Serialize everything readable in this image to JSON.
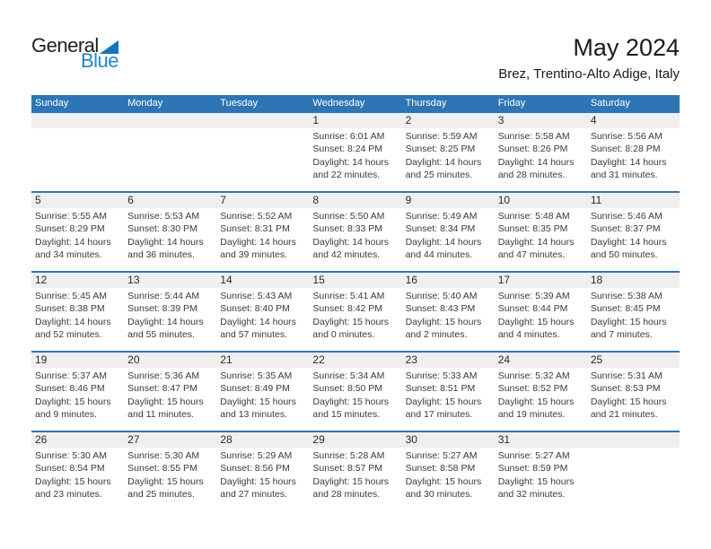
{
  "logo": {
    "word_top": "General",
    "word_bottom": "Blue"
  },
  "title": "May 2024",
  "subtitle": "Brez, Trentino-Alto Adige, Italy",
  "colors": {
    "header_blue": "#2E75B5",
    "week_line_blue": "#2E75B5",
    "day_strip_gray": "#EFEFEF",
    "logo_blue": "#1E88CC",
    "logo_triangle_blue": "#1874B8",
    "weekday_text": "#FFFFFF",
    "body_text": "#3A3A3A",
    "day_number_text": "#2B2B2B"
  },
  "weekdays": [
    "Sunday",
    "Monday",
    "Tuesday",
    "Wednesday",
    "Thursday",
    "Friday",
    "Saturday"
  ],
  "weeks": [
    [
      null,
      null,
      null,
      {
        "day": "1",
        "sunrise": "Sunrise: 6:01 AM",
        "sunset": "Sunset: 8:24 PM",
        "daylight_line1": "Daylight: 14 hours",
        "daylight_line2": "and 22 minutes."
      },
      {
        "day": "2",
        "sunrise": "Sunrise: 5:59 AM",
        "sunset": "Sunset: 8:25 PM",
        "daylight_line1": "Daylight: 14 hours",
        "daylight_line2": "and 25 minutes."
      },
      {
        "day": "3",
        "sunrise": "Sunrise: 5:58 AM",
        "sunset": "Sunset: 8:26 PM",
        "daylight_line1": "Daylight: 14 hours",
        "daylight_line2": "and 28 minutes."
      },
      {
        "day": "4",
        "sunrise": "Sunrise: 5:56 AM",
        "sunset": "Sunset: 8:28 PM",
        "daylight_line1": "Daylight: 14 hours",
        "daylight_line2": "and 31 minutes."
      }
    ],
    [
      {
        "day": "5",
        "sunrise": "Sunrise: 5:55 AM",
        "sunset": "Sunset: 8:29 PM",
        "daylight_line1": "Daylight: 14 hours",
        "daylight_line2": "and 34 minutes."
      },
      {
        "day": "6",
        "sunrise": "Sunrise: 5:53 AM",
        "sunset": "Sunset: 8:30 PM",
        "daylight_line1": "Daylight: 14 hours",
        "daylight_line2": "and 36 minutes."
      },
      {
        "day": "7",
        "sunrise": "Sunrise: 5:52 AM",
        "sunset": "Sunset: 8:31 PM",
        "daylight_line1": "Daylight: 14 hours",
        "daylight_line2": "and 39 minutes."
      },
      {
        "day": "8",
        "sunrise": "Sunrise: 5:50 AM",
        "sunset": "Sunset: 8:33 PM",
        "daylight_line1": "Daylight: 14 hours",
        "daylight_line2": "and 42 minutes."
      },
      {
        "day": "9",
        "sunrise": "Sunrise: 5:49 AM",
        "sunset": "Sunset: 8:34 PM",
        "daylight_line1": "Daylight: 14 hours",
        "daylight_line2": "and 44 minutes."
      },
      {
        "day": "10",
        "sunrise": "Sunrise: 5:48 AM",
        "sunset": "Sunset: 8:35 PM",
        "daylight_line1": "Daylight: 14 hours",
        "daylight_line2": "and 47 minutes."
      },
      {
        "day": "11",
        "sunrise": "Sunrise: 5:46 AM",
        "sunset": "Sunset: 8:37 PM",
        "daylight_line1": "Daylight: 14 hours",
        "daylight_line2": "and 50 minutes."
      }
    ],
    [
      {
        "day": "12",
        "sunrise": "Sunrise: 5:45 AM",
        "sunset": "Sunset: 8:38 PM",
        "daylight_line1": "Daylight: 14 hours",
        "daylight_line2": "and 52 minutes."
      },
      {
        "day": "13",
        "sunrise": "Sunrise: 5:44 AM",
        "sunset": "Sunset: 8:39 PM",
        "daylight_line1": "Daylight: 14 hours",
        "daylight_line2": "and 55 minutes."
      },
      {
        "day": "14",
        "sunrise": "Sunrise: 5:43 AM",
        "sunset": "Sunset: 8:40 PM",
        "daylight_line1": "Daylight: 14 hours",
        "daylight_line2": "and 57 minutes."
      },
      {
        "day": "15",
        "sunrise": "Sunrise: 5:41 AM",
        "sunset": "Sunset: 8:42 PM",
        "daylight_line1": "Daylight: 15 hours",
        "daylight_line2": "and 0 minutes."
      },
      {
        "day": "16",
        "sunrise": "Sunrise: 5:40 AM",
        "sunset": "Sunset: 8:43 PM",
        "daylight_line1": "Daylight: 15 hours",
        "daylight_line2": "and 2 minutes."
      },
      {
        "day": "17",
        "sunrise": "Sunrise: 5:39 AM",
        "sunset": "Sunset: 8:44 PM",
        "daylight_line1": "Daylight: 15 hours",
        "daylight_line2": "and 4 minutes."
      },
      {
        "day": "18",
        "sunrise": "Sunrise: 5:38 AM",
        "sunset": "Sunset: 8:45 PM",
        "daylight_line1": "Daylight: 15 hours",
        "daylight_line2": "and 7 minutes."
      }
    ],
    [
      {
        "day": "19",
        "sunrise": "Sunrise: 5:37 AM",
        "sunset": "Sunset: 8:46 PM",
        "daylight_line1": "Daylight: 15 hours",
        "daylight_line2": "and 9 minutes."
      },
      {
        "day": "20",
        "sunrise": "Sunrise: 5:36 AM",
        "sunset": "Sunset: 8:47 PM",
        "daylight_line1": "Daylight: 15 hours",
        "daylight_line2": "and 11 minutes."
      },
      {
        "day": "21",
        "sunrise": "Sunrise: 5:35 AM",
        "sunset": "Sunset: 8:49 PM",
        "daylight_line1": "Daylight: 15 hours",
        "daylight_line2": "and 13 minutes."
      },
      {
        "day": "22",
        "sunrise": "Sunrise: 5:34 AM",
        "sunset": "Sunset: 8:50 PM",
        "daylight_line1": "Daylight: 15 hours",
        "daylight_line2": "and 15 minutes."
      },
      {
        "day": "23",
        "sunrise": "Sunrise: 5:33 AM",
        "sunset": "Sunset: 8:51 PM",
        "daylight_line1": "Daylight: 15 hours",
        "daylight_line2": "and 17 minutes."
      },
      {
        "day": "24",
        "sunrise": "Sunrise: 5:32 AM",
        "sunset": "Sunset: 8:52 PM",
        "daylight_line1": "Daylight: 15 hours",
        "daylight_line2": "and 19 minutes."
      },
      {
        "day": "25",
        "sunrise": "Sunrise: 5:31 AM",
        "sunset": "Sunset: 8:53 PM",
        "daylight_line1": "Daylight: 15 hours",
        "daylight_line2": "and 21 minutes."
      }
    ],
    [
      {
        "day": "26",
        "sunrise": "Sunrise: 5:30 AM",
        "sunset": "Sunset: 8:54 PM",
        "daylight_line1": "Daylight: 15 hours",
        "daylight_line2": "and 23 minutes."
      },
      {
        "day": "27",
        "sunrise": "Sunrise: 5:30 AM",
        "sunset": "Sunset: 8:55 PM",
        "daylight_line1": "Daylight: 15 hours",
        "daylight_line2": "and 25 minutes."
      },
      {
        "day": "28",
        "sunrise": "Sunrise: 5:29 AM",
        "sunset": "Sunset: 8:56 PM",
        "daylight_line1": "Daylight: 15 hours",
        "daylight_line2": "and 27 minutes."
      },
      {
        "day": "29",
        "sunrise": "Sunrise: 5:28 AM",
        "sunset": "Sunset: 8:57 PM",
        "daylight_line1": "Daylight: 15 hours",
        "daylight_line2": "and 28 minutes."
      },
      {
        "day": "30",
        "sunrise": "Sunrise: 5:27 AM",
        "sunset": "Sunset: 8:58 PM",
        "daylight_line1": "Daylight: 15 hours",
        "daylight_line2": "and 30 minutes."
      },
      {
        "day": "31",
        "sunrise": "Sunrise: 5:27 AM",
        "sunset": "Sunset: 8:59 PM",
        "daylight_line1": "Daylight: 15 hours",
        "daylight_line2": "and 32 minutes."
      },
      null
    ]
  ]
}
